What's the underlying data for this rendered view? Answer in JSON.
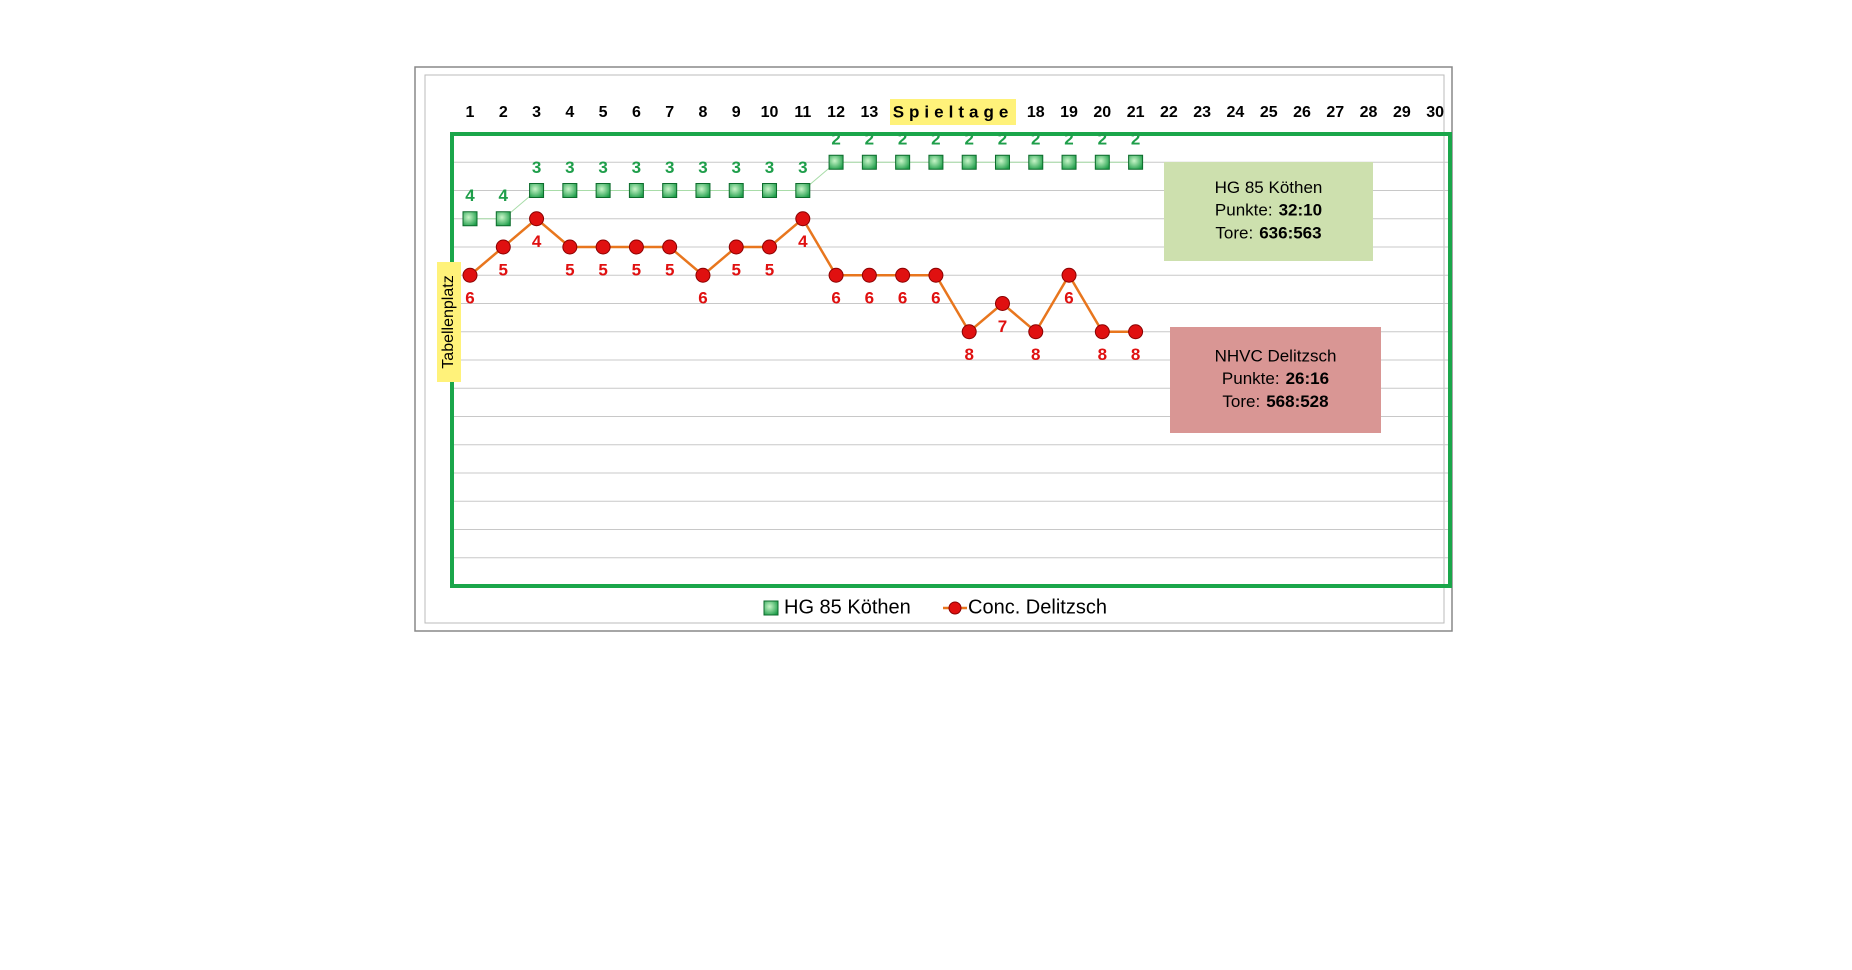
{
  "chart_data": {
    "type": "line",
    "xlabel": "Spieltage",
    "ylabel": "Tabellenplatz",
    "categories": [
      1,
      2,
      3,
      4,
      5,
      6,
      7,
      8,
      9,
      10,
      11,
      12,
      13,
      null,
      null,
      null,
      null,
      18,
      19,
      20,
      21,
      22,
      23,
      24,
      25,
      26,
      27,
      28,
      29,
      30
    ],
    "ylim": [
      1,
      17
    ],
    "yticks": [
      1,
      2,
      3,
      4,
      5,
      6,
      7,
      8,
      9,
      10,
      11,
      12,
      13,
      14,
      15,
      16,
      17
    ],
    "y_inverted": true,
    "grid": true,
    "legend": "bottom",
    "series": [
      {
        "name": "HG 85 Köthen",
        "color": "#1e9e4a",
        "label_position": "above",
        "values": [
          4,
          4,
          3,
          3,
          3,
          3,
          3,
          3,
          3,
          3,
          3,
          2,
          2,
          2,
          2,
          2,
          2,
          2,
          2,
          2,
          2,
          null,
          null,
          null,
          null,
          null,
          null,
          null,
          null,
          null
        ]
      },
      {
        "name": "Conc. Delitzsch",
        "color": "#e8761e",
        "marker_color": "#e01010",
        "label_position": "below",
        "values": [
          6,
          5,
          4,
          5,
          5,
          5,
          5,
          6,
          5,
          5,
          4,
          6,
          6,
          6,
          6,
          8,
          7,
          8,
          6,
          8,
          8,
          null,
          null,
          null,
          null,
          null,
          null,
          null,
          null,
          null
        ]
      }
    ],
    "annotations": [
      {
        "title": "HG 85 Köthen",
        "color": "#cde0ae",
        "lines": [
          [
            "Punkte:",
            "32:10"
          ],
          [
            "Tore:",
            "636:563"
          ]
        ]
      },
      {
        "title": "NHVC Delitzsch",
        "color": "#d99694",
        "lines": [
          [
            "Punkte:",
            "26:16"
          ],
          [
            "Tore:",
            "568:528"
          ]
        ]
      }
    ]
  }
}
